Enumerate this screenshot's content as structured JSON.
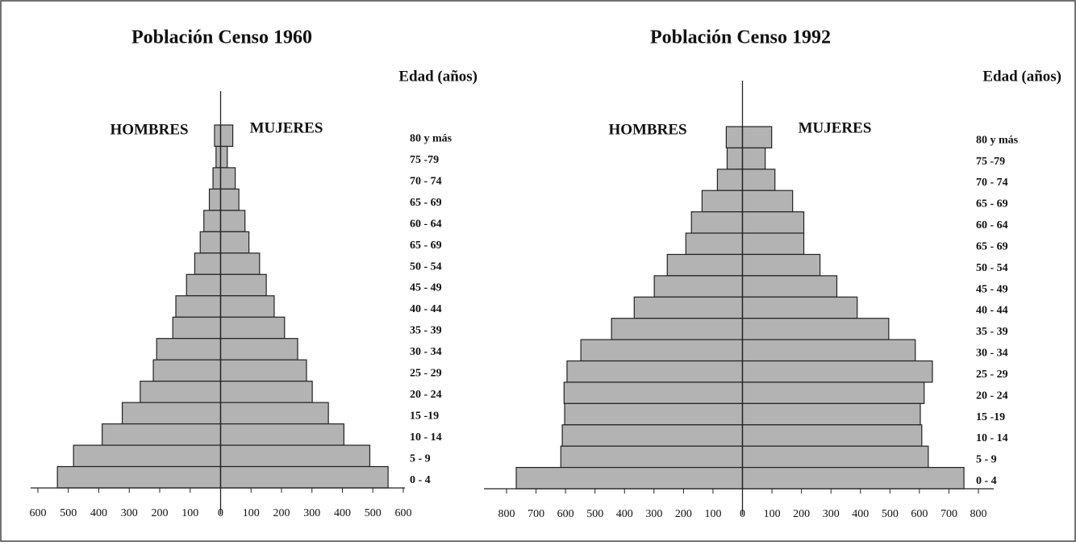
{
  "chart_data": [
    {
      "type": "pyramid",
      "title": "Población Censo 1960",
      "axis_label": "Edad (años)",
      "categories": [
        "80 y más",
        "75 -79",
        "70 - 74",
        "65 - 69",
        "60 - 64",
        "65 - 69",
        "50 - 54",
        "45 - 49",
        "40 - 44",
        "35 - 39",
        "30 - 34",
        "25 - 29",
        "20 - 24",
        "15 -19",
        "10 - 14",
        "5 - 9",
        "0 - 4"
      ],
      "series": [
        {
          "name": "HOMBRES",
          "color": "#b3b3b3",
          "values": [
            20,
            15,
            25,
            37,
            55,
            67,
            85,
            112,
            147,
            157,
            210,
            221,
            264,
            323,
            389,
            483,
            536
          ]
        },
        {
          "name": "MUJERES",
          "color": "#b3b3b3",
          "values": [
            40,
            22,
            48,
            60,
            80,
            93,
            128,
            150,
            176,
            210,
            253,
            282,
            301,
            354,
            405,
            490,
            550
          ]
        }
      ],
      "xlim": [
        -600,
        600
      ],
      "xticks": [
        {
          "value": -600,
          "label": "600"
        },
        {
          "value": -500,
          "label": "500"
        },
        {
          "value": -400,
          "label": "400"
        },
        {
          "value": -300,
          "label": "300"
        },
        {
          "value": -200,
          "label": "200"
        },
        {
          "value": -100,
          "label": "100"
        },
        0,
        100,
        200,
        300,
        400,
        500,
        600
      ]
    },
    {
      "type": "pyramid",
      "title": "Población Censo 1992",
      "axis_label": "Edad  (años)",
      "categories": [
        "80 y más",
        "75 -79",
        "70 - 74",
        "65 - 69",
        "60 - 64",
        "65 - 69",
        "50 - 54",
        "45 - 49",
        "40 - 44",
        "35 - 39",
        "30 - 34",
        "25 - 29",
        "20 - 24",
        "15 -19",
        "10 - 14",
        "5 - 9",
        "0 - 4"
      ],
      "series": [
        {
          "name": "HOMBRES",
          "color": "#b3b3b3",
          "values": [
            55,
            52,
            85,
            137,
            173,
            192,
            255,
            299,
            367,
            444,
            548,
            595,
            605,
            603,
            611,
            616,
            767
          ]
        },
        {
          "name": "MUJERES",
          "color": "#b3b3b3",
          "values": [
            99,
            77,
            110,
            170,
            208,
            208,
            263,
            320,
            389,
            496,
            586,
            644,
            616,
            603,
            608,
            630,
            751
          ]
        }
      ],
      "xlim": [
        -800,
        800
      ],
      "xticks": [
        {
          "value": -800,
          "label": "800"
        },
        {
          "value": -700,
          "label": "700"
        },
        {
          "value": -600,
          "label": "600"
        },
        {
          "value": -500,
          "label": "500"
        },
        {
          "value": -400,
          "label": "400"
        },
        {
          "value": -300,
          "label": "300"
        },
        {
          "value": -200,
          "label": "200"
        },
        {
          "value": -100,
          "label": "100"
        },
        0,
        100,
        200,
        300,
        400,
        500,
        600,
        700,
        800
      ]
    }
  ]
}
